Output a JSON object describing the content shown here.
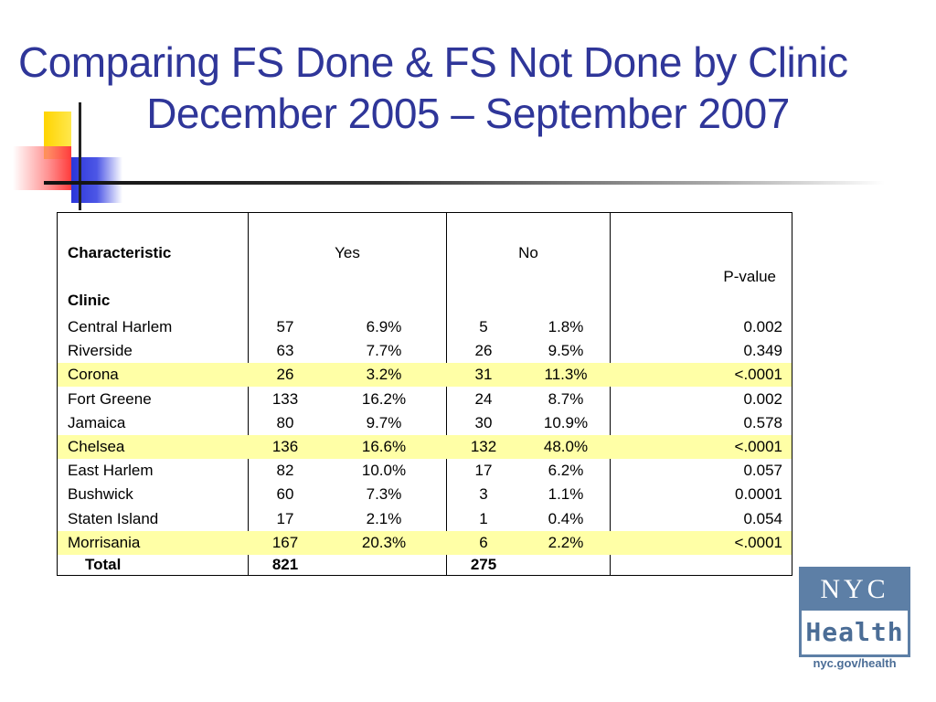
{
  "title": {
    "line1": "Comparing FS Done & FS Not Done by Clinic",
    "line2": "December 2005 – September 2007"
  },
  "table": {
    "header": {
      "characteristic": "Characteristic",
      "yes": "Yes",
      "no": "No",
      "pvalue": "P-value",
      "clinic": "Clinic"
    },
    "rows": [
      {
        "name": "Central Harlem",
        "yes_n": "57",
        "yes_pct": "6.9%",
        "no_n": "5",
        "no_pct": "1.8%",
        "pvalue": "0.002",
        "highlight": false
      },
      {
        "name": "Riverside",
        "yes_n": "63",
        "yes_pct": "7.7%",
        "no_n": "26",
        "no_pct": "9.5%",
        "pvalue": "0.349",
        "highlight": false
      },
      {
        "name": "Corona",
        "yes_n": "26",
        "yes_pct": "3.2%",
        "no_n": "31",
        "no_pct": "11.3%",
        "pvalue": "<.0001",
        "highlight": true
      },
      {
        "name": "Fort Greene",
        "yes_n": "133",
        "yes_pct": "16.2%",
        "no_n": "24",
        "no_pct": "8.7%",
        "pvalue": "0.002",
        "highlight": false
      },
      {
        "name": "Jamaica",
        "yes_n": "80",
        "yes_pct": "9.7%",
        "no_n": "30",
        "no_pct": "10.9%",
        "pvalue": "0.578",
        "highlight": false
      },
      {
        "name": "Chelsea",
        "yes_n": "136",
        "yes_pct": "16.6%",
        "no_n": "132",
        "no_pct": "48.0%",
        "pvalue": "<.0001",
        "highlight": true
      },
      {
        "name": "East Harlem",
        "yes_n": "82",
        "yes_pct": "10.0%",
        "no_n": "17",
        "no_pct": "6.2%",
        "pvalue": "0.057",
        "highlight": false
      },
      {
        "name": "Bushwick",
        "yes_n": "60",
        "yes_pct": "7.3%",
        "no_n": "3",
        "no_pct": "1.1%",
        "pvalue": "0.0001",
        "highlight": false
      },
      {
        "name": "Staten Island",
        "yes_n": "17",
        "yes_pct": "2.1%",
        "no_n": "1",
        "no_pct": "0.4%",
        "pvalue": "0.054",
        "highlight": false
      },
      {
        "name": "Morrisania",
        "yes_n": "167",
        "yes_pct": "20.3%",
        "no_n": "6",
        "no_pct": "2.2%",
        "pvalue": "<.0001",
        "highlight": true
      }
    ],
    "total": {
      "label": "Total",
      "yes_n": "821",
      "no_n": "275"
    },
    "highlight_color": "#ffffa6"
  },
  "logo": {
    "top": "NYC",
    "middle": "Health",
    "url": "nyc.gov/health"
  },
  "colors": {
    "title": "#2f3699",
    "logo": "#5d7fa6"
  }
}
